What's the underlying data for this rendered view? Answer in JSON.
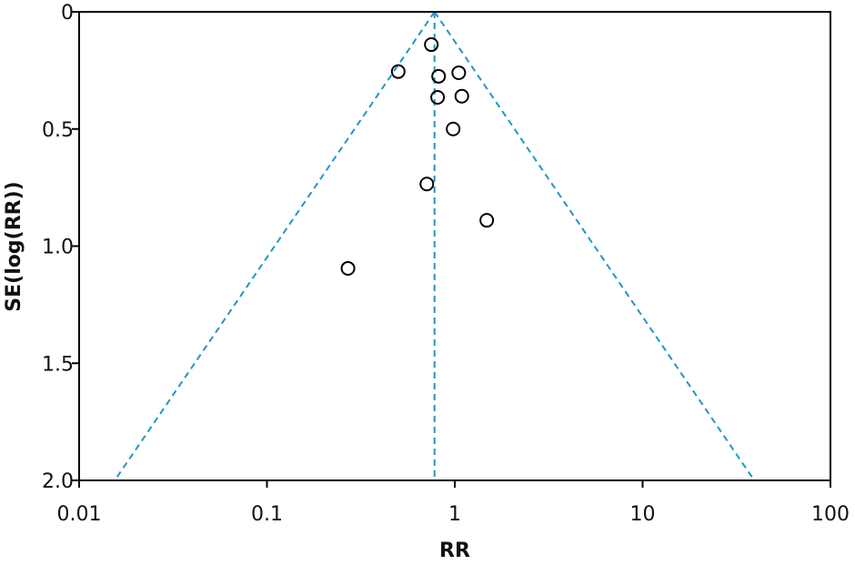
{
  "chart_data": {
    "type": "scatter",
    "title": "",
    "xlabel": "RR",
    "ylabel": "SE(log(RR))",
    "x_scale": "log",
    "xlim": [
      0.01,
      100
    ],
    "ylim": [
      0,
      2.0
    ],
    "y_inverted": true,
    "x_ticks": [
      {
        "value": 0.01,
        "label": "0.01"
      },
      {
        "value": 0.1,
        "label": "0.1"
      },
      {
        "value": 1,
        "label": "1"
      },
      {
        "value": 10,
        "label": "10"
      },
      {
        "value": 100,
        "label": "100"
      }
    ],
    "y_ticks": [
      {
        "value": 0,
        "label": "0"
      },
      {
        "value": 0.5,
        "label": "0.5"
      },
      {
        "value": 1.0,
        "label": "1.0"
      },
      {
        "value": 1.5,
        "label": "1.5"
      },
      {
        "value": 2.0,
        "label": "2.0"
      }
    ],
    "grid": false,
    "points": [
      {
        "x": 0.75,
        "y": 0.14
      },
      {
        "x": 0.5,
        "y": 0.255
      },
      {
        "x": 0.82,
        "y": 0.275
      },
      {
        "x": 1.05,
        "y": 0.26
      },
      {
        "x": 0.81,
        "y": 0.365
      },
      {
        "x": 1.09,
        "y": 0.36
      },
      {
        "x": 0.98,
        "y": 0.5
      },
      {
        "x": 0.71,
        "y": 0.735
      },
      {
        "x": 1.48,
        "y": 0.89
      },
      {
        "x": 0.27,
        "y": 1.095
      }
    ],
    "pooled_estimate": 0.78,
    "funnel_z": 1.96,
    "colors": {
      "points": "#000000",
      "funnel": "#1f96c8",
      "axes": "#000000"
    }
  }
}
